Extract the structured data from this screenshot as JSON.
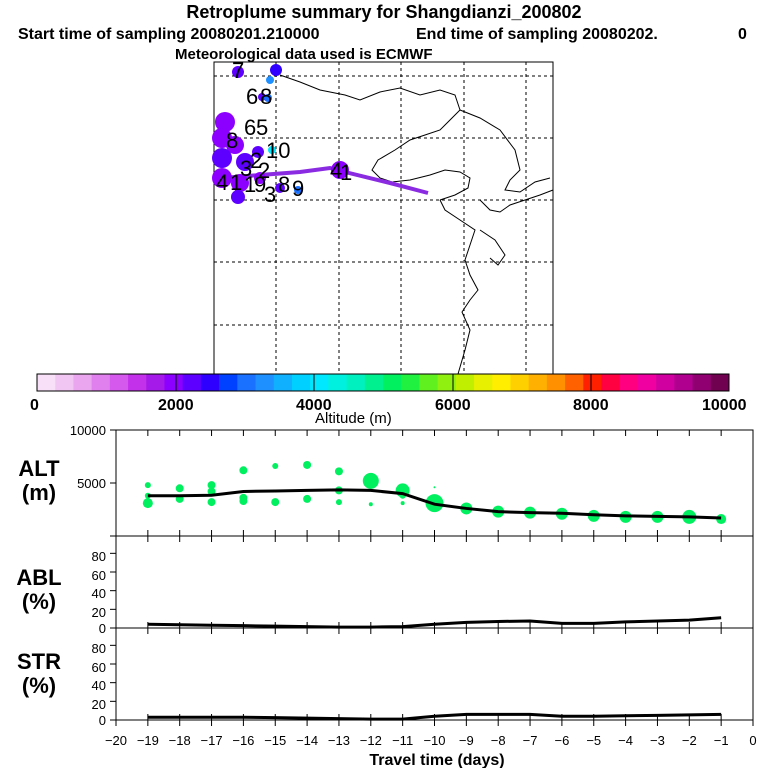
{
  "header": {
    "title": "Retroplume summary for Shangdianzi_200802",
    "start_label": "Start time of sampling 20080201.210000",
    "end_label": "End time of sampling 20080202.",
    "end_suffix": "0",
    "met_label": "Meteorological data used is ECMWF"
  },
  "map": {
    "labels": [
      "7",
      "6",
      "8",
      "6",
      "5",
      "8",
      "2",
      "10",
      "3",
      "2",
      "4",
      "1",
      "1",
      "9",
      "3",
      "8",
      "9",
      "4",
      "1"
    ],
    "track_color": "#8a2be2"
  },
  "colorbar": {
    "tick_labels": [
      "0",
      "2000",
      "4000",
      "6000",
      "8000",
      "10000"
    ],
    "xlabel": "Altitude (m)",
    "colors": [
      "#f9e0f9",
      "#f2c6f2",
      "#eaa7f0",
      "#e080ee",
      "#d459ec",
      "#c431ea",
      "#a51ae8",
      "#8b00ff",
      "#5d00ff",
      "#2e00ff",
      "#0040ff",
      "#1a70ff",
      "#1f90ff",
      "#10b0ff",
      "#00d0ff",
      "#00e8ff",
      "#00f0e0",
      "#00f0c0",
      "#00f090",
      "#00f060",
      "#20f040",
      "#60f020",
      "#90f010",
      "#c0f000",
      "#e6f000",
      "#ffee00",
      "#ffd000",
      "#ffb000",
      "#ff9000",
      "#ff6000",
      "#ff2000",
      "#ff0040",
      "#ff0080",
      "#f000a0",
      "#d000a0",
      "#b00090",
      "#900070",
      "#700050"
    ]
  },
  "chart_data": [
    {
      "type": "scatter",
      "panel": "ALT",
      "ylabel": "ALT\n(m)",
      "ylabel_line1": "ALT",
      "ylabel_line2": "(m)",
      "ylim": [
        0,
        10000
      ],
      "yticks": [
        "10000",
        "5000"
      ],
      "xlim": [
        -20,
        0
      ],
      "x": [
        -19,
        -18,
        -17,
        -16,
        -15,
        -14,
        -13,
        -12,
        -11,
        -10,
        -9,
        -8,
        -7,
        -6,
        -5,
        -4,
        -3,
        -2,
        -1
      ],
      "mean_line": [
        3800,
        3800,
        3850,
        4200,
        4250,
        4300,
        4350,
        4300,
        4000,
        3000,
        2600,
        2300,
        2200,
        2150,
        2000,
        1900,
        1850,
        1800,
        1700
      ],
      "points": [
        {
          "x": -19,
          "y": 4800,
          "s": 3
        },
        {
          "x": -19,
          "y": 3800,
          "s": 3
        },
        {
          "x": -19,
          "y": 3100,
          "s": 5
        },
        {
          "x": -18,
          "y": 4500,
          "s": 4
        },
        {
          "x": -18,
          "y": 3500,
          "s": 4
        },
        {
          "x": -17,
          "y": 4800,
          "s": 4
        },
        {
          "x": -17,
          "y": 4200,
          "s": 4
        },
        {
          "x": -17,
          "y": 3200,
          "s": 4
        },
        {
          "x": -16,
          "y": 6200,
          "s": 4
        },
        {
          "x": -16,
          "y": 3600,
          "s": 4
        },
        {
          "x": -16,
          "y": 3300,
          "s": 4
        },
        {
          "x": -15,
          "y": 6600,
          "s": 3
        },
        {
          "x": -15,
          "y": 3200,
          "s": 4
        },
        {
          "x": -14,
          "y": 6700,
          "s": 4
        },
        {
          "x": -14,
          "y": 3500,
          "s": 4
        },
        {
          "x": -13,
          "y": 6100,
          "s": 4
        },
        {
          "x": -13,
          "y": 4300,
          "s": 4
        },
        {
          "x": -13,
          "y": 3200,
          "s": 3
        },
        {
          "x": -12,
          "y": 5200,
          "s": 8
        },
        {
          "x": -12,
          "y": 3000,
          "s": 2
        },
        {
          "x": -11,
          "y": 4300,
          "s": 7
        },
        {
          "x": -11,
          "y": 3800,
          "s": 3
        },
        {
          "x": -11,
          "y": 3100,
          "s": 2
        },
        {
          "x": -10,
          "y": 3100,
          "s": 9
        },
        {
          "x": -10,
          "y": 4600,
          "s": 1
        },
        {
          "x": -9,
          "y": 2600,
          "s": 6
        },
        {
          "x": -8,
          "y": 2300,
          "s": 6
        },
        {
          "x": -7,
          "y": 2200,
          "s": 6
        },
        {
          "x": -6,
          "y": 2100,
          "s": 6
        },
        {
          "x": -5,
          "y": 1900,
          "s": 6
        },
        {
          "x": -4,
          "y": 1800,
          "s": 6
        },
        {
          "x": -3,
          "y": 1800,
          "s": 6
        },
        {
          "x": -2,
          "y": 1800,
          "s": 7
        },
        {
          "x": -1,
          "y": 1600,
          "s": 5
        }
      ]
    },
    {
      "type": "line",
      "panel": "ABL",
      "ylabel_line1": "ABL",
      "ylabel_line2": "(%)",
      "ylim": [
        0,
        90
      ],
      "yticks": [
        "80",
        "60",
        "40",
        "20",
        "0"
      ],
      "x": [
        -19,
        -18,
        -17,
        -16,
        -15,
        -14,
        -13,
        -12,
        -11,
        -10,
        -9,
        -8,
        -7,
        -6,
        -5,
        -4,
        -3,
        -2,
        -1
      ],
      "values": [
        4,
        3.5,
        3,
        2.5,
        2,
        1.5,
        1,
        1,
        1.5,
        4,
        6,
        7,
        7.5,
        5,
        5,
        6.5,
        7.5,
        8.5,
        11
      ]
    },
    {
      "type": "line",
      "panel": "STR",
      "ylabel_line1": "STR",
      "ylabel_line2": "(%)",
      "ylim": [
        0,
        90
      ],
      "yticks": [
        "80",
        "60",
        "40",
        "20",
        "0"
      ],
      "x": [
        -19,
        -18,
        -17,
        -16,
        -15,
        -14,
        -13,
        -12,
        -11,
        -10,
        -9,
        -8,
        -7,
        -6,
        -5,
        -4,
        -3,
        -2,
        -1
      ],
      "values": [
        3,
        3,
        3,
        3,
        2.5,
        2,
        1.5,
        1,
        1,
        4,
        6,
        6,
        6,
        4,
        4,
        4.5,
        5,
        5.5,
        6
      ],
      "xlabel": "Travel time (days)",
      "xtick_labels": [
        "−20",
        "−19",
        "−18",
        "−17",
        "−16",
        "−15",
        "−14",
        "−13",
        "−12",
        "−11",
        "−10",
        "−9",
        "−8",
        "−7",
        "−6",
        "−5",
        "−4",
        "−3",
        "−2",
        "−1",
        "0"
      ]
    }
  ]
}
